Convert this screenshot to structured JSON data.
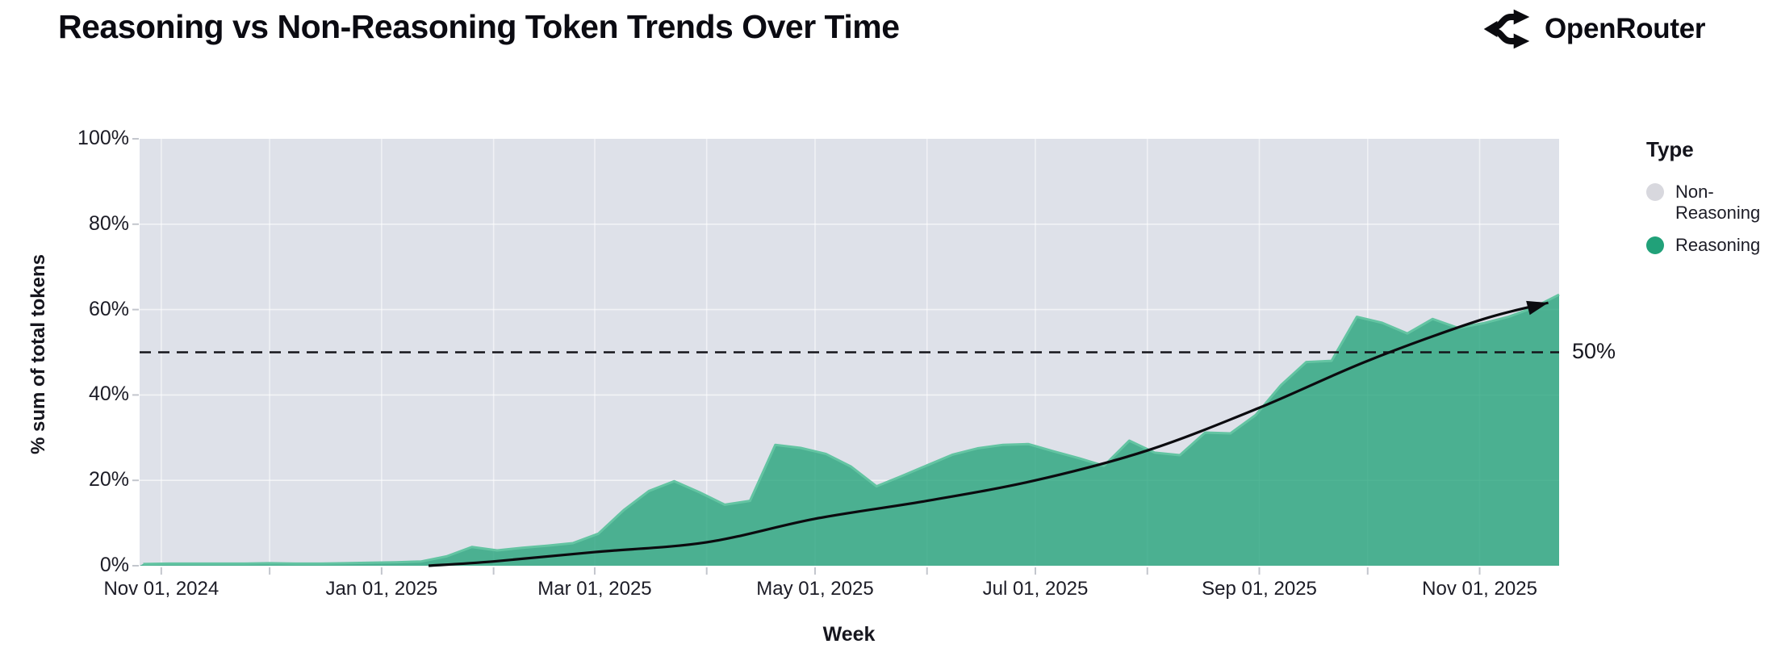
{
  "header": {
    "title": "Reasoning vs Non-Reasoning Token Trends Over Time",
    "brand": "OpenRouter"
  },
  "chart_data": {
    "type": "area",
    "stacked_percent": true,
    "title": "Reasoning vs Non-Reasoning Token Trends Over Time",
    "xlabel": "Week",
    "ylabel": "% sum of total tokens",
    "ylim": [
      0,
      100
    ],
    "x_domain": [
      "2024-10-26",
      "2025-11-23"
    ],
    "grid": true,
    "colors": {
      "reasoning_fill": "#21a179",
      "reasoning_edge": "#63c4a2",
      "non_reasoning": "#d8d8de",
      "plot_background": "#dee1e9",
      "trend_line": "#0b0b0f",
      "reference_line": "#15151b",
      "tick_mark": "#c3c6cd"
    },
    "y_ticks": [
      {
        "value": 0,
        "label": "0%"
      },
      {
        "value": 20,
        "label": "20%"
      },
      {
        "value": 40,
        "label": "40%"
      },
      {
        "value": 60,
        "label": "60%"
      },
      {
        "value": 80,
        "label": "80%"
      },
      {
        "value": 100,
        "label": "100%"
      }
    ],
    "x_ticks": [
      {
        "date": "2024-11-01",
        "label": "Nov 01, 2024"
      },
      {
        "date": "2025-01-01",
        "label": "Jan 01, 2025"
      },
      {
        "date": "2025-03-01",
        "label": "Mar 01, 2025"
      },
      {
        "date": "2025-05-01",
        "label": "May 01, 2025"
      },
      {
        "date": "2025-07-01",
        "label": "Jul 01, 2025"
      },
      {
        "date": "2025-09-01",
        "label": "Sep 01, 2025"
      },
      {
        "date": "2025-11-01",
        "label": "Nov 01, 2025"
      }
    ],
    "x_minor_ticks": [
      "2024-11-01",
      "2024-12-01",
      "2025-01-01",
      "2025-02-01",
      "2025-03-01",
      "2025-04-01",
      "2025-05-01",
      "2025-06-01",
      "2025-07-01",
      "2025-08-01",
      "2025-09-01",
      "2025-10-01",
      "2025-11-01"
    ],
    "legend": {
      "title": "Type",
      "items": [
        {
          "label": "Non-Reasoning",
          "color": "#d8d8de"
        },
        {
          "label": "Reasoning",
          "color": "#21a179"
        }
      ]
    },
    "reference_line": {
      "value": 50,
      "label": "50%"
    },
    "series": [
      {
        "name": "Reasoning",
        "unit": "% of total tokens per week",
        "points": [
          [
            "2024-10-27",
            0.4
          ],
          [
            "2024-11-03",
            0.5
          ],
          [
            "2024-11-10",
            0.5
          ],
          [
            "2024-11-17",
            0.5
          ],
          [
            "2024-11-24",
            0.5
          ],
          [
            "2024-12-01",
            0.6
          ],
          [
            "2024-12-08",
            0.5
          ],
          [
            "2024-12-15",
            0.5
          ],
          [
            "2024-12-22",
            0.6
          ],
          [
            "2024-12-29",
            0.7
          ],
          [
            "2025-01-05",
            0.8
          ],
          [
            "2025-01-12",
            1.0
          ],
          [
            "2025-01-19",
            2.2
          ],
          [
            "2025-01-26",
            4.4
          ],
          [
            "2025-02-02",
            3.6
          ],
          [
            "2025-02-09",
            4.2
          ],
          [
            "2025-02-16",
            4.7
          ],
          [
            "2025-02-23",
            5.3
          ],
          [
            "2025-03-02",
            7.5
          ],
          [
            "2025-03-09",
            13.0
          ],
          [
            "2025-03-16",
            17.5
          ],
          [
            "2025-03-23",
            19.8
          ],
          [
            "2025-03-30",
            17.2
          ],
          [
            "2025-04-06",
            14.3
          ],
          [
            "2025-04-13",
            15.2
          ],
          [
            "2025-04-20",
            28.3
          ],
          [
            "2025-04-27",
            27.6
          ],
          [
            "2025-05-04",
            26.2
          ],
          [
            "2025-05-11",
            23.2
          ],
          [
            "2025-05-18",
            18.6
          ],
          [
            "2025-05-25",
            21.0
          ],
          [
            "2025-06-01",
            23.5
          ],
          [
            "2025-06-08",
            26.0
          ],
          [
            "2025-06-15",
            27.5
          ],
          [
            "2025-06-22",
            28.3
          ],
          [
            "2025-06-29",
            28.5
          ],
          [
            "2025-07-06",
            26.8
          ],
          [
            "2025-07-13",
            25.2
          ],
          [
            "2025-07-20",
            23.4
          ],
          [
            "2025-07-27",
            29.3
          ],
          [
            "2025-08-03",
            26.5
          ],
          [
            "2025-08-10",
            25.9
          ],
          [
            "2025-08-17",
            31.2
          ],
          [
            "2025-08-24",
            31.0
          ],
          [
            "2025-08-31",
            35.3
          ],
          [
            "2025-09-07",
            42.3
          ],
          [
            "2025-09-14",
            47.7
          ],
          [
            "2025-09-21",
            48.0
          ],
          [
            "2025-09-28",
            58.3
          ],
          [
            "2025-10-05",
            56.9
          ],
          [
            "2025-10-12",
            54.4
          ],
          [
            "2025-10-19",
            57.8
          ],
          [
            "2025-10-26",
            55.7
          ],
          [
            "2025-11-02",
            56.8
          ],
          [
            "2025-11-09",
            58.3
          ],
          [
            "2025-11-16",
            60.5
          ],
          [
            "2025-11-23",
            63.5
          ]
        ]
      },
      {
        "name": "Non-Reasoning",
        "note": "remainder of stacked 100% area (background gray region)"
      }
    ],
    "trend_arrow": {
      "points": [
        [
          "2025-01-14",
          0.0
        ],
        [
          "2025-02-01",
          1.0
        ],
        [
          "2025-03-01",
          3.2
        ],
        [
          "2025-04-01",
          5.5
        ],
        [
          "2025-05-01",
          11.0
        ],
        [
          "2025-06-01",
          15.2
        ],
        [
          "2025-07-01",
          20.0
        ],
        [
          "2025-08-01",
          27.0
        ],
        [
          "2025-09-01",
          37.0
        ],
        [
          "2025-10-01",
          48.0
        ],
        [
          "2025-11-01",
          57.5
        ],
        [
          "2025-11-20",
          61.6
        ]
      ]
    }
  }
}
